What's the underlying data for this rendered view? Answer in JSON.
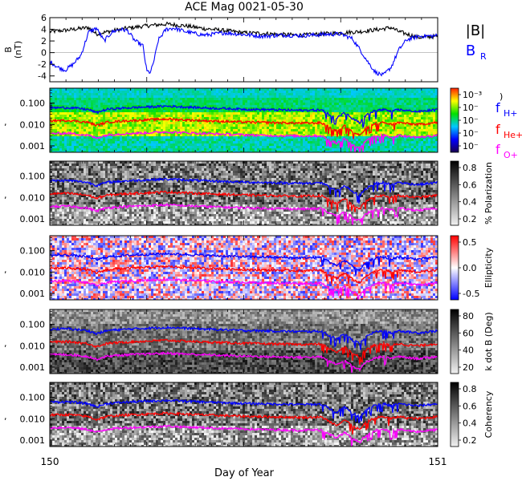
{
  "chart_data": {
    "type": "line",
    "title": "ACE Mag 0021-05-30",
    "xlabel": "Day of Year",
    "xlim": [
      150,
      151
    ],
    "x_ticks": [
      "150",
      "151"
    ],
    "panels": [
      {
        "id": "bfield",
        "type": "line",
        "ylabel": "B (nT)",
        "ylim": [
          -5,
          6
        ],
        "y_ticks": [
          "6",
          "4",
          "2",
          "0",
          "-2",
          "-4"
        ],
        "legend": [
          "|B|",
          "B_R"
        ],
        "series": [
          {
            "name": "|B|",
            "color": "#000000",
            "x": [
              150.0,
              150.05,
              150.1,
              150.12,
              150.15,
              150.2,
              150.25,
              150.3,
              150.35,
              150.4,
              150.45,
              150.5,
              150.55,
              150.6,
              150.65,
              150.7,
              150.75,
              150.8,
              150.85,
              150.88,
              150.9,
              150.95,
              151.0
            ],
            "y": [
              3.6,
              3.9,
              4.3,
              3.2,
              3.6,
              4.2,
              4.6,
              4.9,
              4.6,
              4.1,
              3.8,
              3.4,
              3.3,
              3.1,
              3.0,
              3.2,
              3.4,
              3.6,
              4.0,
              4.3,
              3.6,
              2.6,
              2.8
            ]
          },
          {
            "name": "B_R",
            "color": "#0000ff",
            "x": [
              150.0,
              150.02,
              150.04,
              150.06,
              150.08,
              150.1,
              150.12,
              150.14,
              150.16,
              150.18,
              150.2,
              150.22,
              150.24,
              150.25,
              150.26,
              150.27,
              150.28,
              150.3,
              150.32,
              150.35,
              150.38,
              150.4,
              150.45,
              150.5,
              150.55,
              150.6,
              150.65,
              150.7,
              150.75,
              150.78,
              150.8,
              150.82,
              150.84,
              150.86,
              150.88,
              150.9,
              150.92,
              150.95,
              151.0
            ],
            "y": [
              -1.5,
              -2.5,
              -3.0,
              -2.0,
              -0.5,
              3.5,
              4.2,
              2.0,
              3.5,
              4.0,
              3.8,
              2.0,
              1.2,
              -3.2,
              -3.4,
              -1.0,
              2.2,
              4.0,
              4.2,
              3.6,
              3.2,
              3.0,
              3.4,
              3.1,
              2.8,
              3.0,
              2.9,
              3.1,
              3.2,
              2.4,
              0.5,
              -1.6,
              -3.4,
              -3.9,
              -2.5,
              0.5,
              2.2,
              2.8,
              2.9
            ]
          }
        ]
      },
      {
        "id": "spectrum",
        "type": "heatmap",
        "ylabel": "",
        "ylim": [
          0.0005,
          0.5
        ],
        "yscale": "log",
        "y_ticks": [
          "0.100",
          "0.010",
          "0.001"
        ],
        "colorbar_ticks": [
          "10⁻³",
          "10⁻",
          "10⁻",
          "10⁻",
          "10⁻"
        ],
        "colorscale": "rainbow",
        "legend": [
          "f_H+",
          "f_He+",
          "f_O+"
        ]
      },
      {
        "id": "polarization",
        "type": "heatmap",
        "ylim": [
          0.0005,
          0.5
        ],
        "yscale": "log",
        "y_ticks": [
          "0.100",
          "0.010",
          "0.001"
        ],
        "colorbar_label": "% Polarization",
        "colorbar_ticks": [
          "0.8",
          "0.6",
          "0.4",
          "0.2"
        ],
        "colorscale": "gray"
      },
      {
        "id": "ellipticity",
        "type": "heatmap",
        "ylim": [
          0.0005,
          0.5
        ],
        "yscale": "log",
        "y_ticks": [
          "0.100",
          "0.010",
          "0.001"
        ],
        "colorbar_label": "Ellipticity",
        "colorbar_ticks": [
          "0.5",
          "0.0",
          "-0.5"
        ],
        "colorscale": "blue-white-red"
      },
      {
        "id": "kdotb",
        "type": "heatmap",
        "ylim": [
          0.0005,
          0.5
        ],
        "yscale": "log",
        "y_ticks": [
          "0.100",
          "0.010",
          "0.001"
        ],
        "colorbar_label": "k dot B (Deg)",
        "colorbar_ticks": [
          "80",
          "60",
          "40",
          "20"
        ],
        "colorscale": "gray"
      },
      {
        "id": "coherency",
        "type": "heatmap",
        "ylim": [
          0.0005,
          0.5
        ],
        "yscale": "log",
        "y_ticks": [
          "0.100",
          "0.010",
          "0.001"
        ],
        "colorbar_label": "Coherency",
        "colorbar_ticks": [
          "0.8",
          "0.6",
          "0.4",
          "0.2"
        ],
        "colorscale": "gray"
      }
    ],
    "gyro_lines": [
      {
        "name": "f_H+",
        "color": "#0000ff",
        "x": [
          150.0,
          150.05,
          150.1,
          150.12,
          150.15,
          150.2,
          150.25,
          150.3,
          150.35,
          150.4,
          150.45,
          150.5,
          150.55,
          150.6,
          150.65,
          150.7,
          150.72,
          150.74,
          150.76,
          150.78,
          150.8,
          150.82,
          150.84,
          150.86,
          150.88,
          150.9,
          150.92,
          150.95,
          151.0
        ],
        "y": [
          0.06,
          0.062,
          0.05,
          0.036,
          0.052,
          0.06,
          0.066,
          0.072,
          0.066,
          0.06,
          0.056,
          0.052,
          0.05,
          0.048,
          0.046,
          0.048,
          0.03,
          0.02,
          0.035,
          0.018,
          0.012,
          0.03,
          0.045,
          0.05,
          0.04,
          0.05,
          0.045,
          0.04,
          0.05
        ]
      },
      {
        "name": "f_He+",
        "color": "#ff0000",
        "x": [
          150.0,
          150.05,
          150.1,
          150.12,
          150.15,
          150.2,
          150.25,
          150.3,
          150.35,
          150.4,
          150.45,
          150.5,
          150.55,
          150.6,
          150.65,
          150.7,
          150.72,
          150.74,
          150.76,
          150.78,
          150.8,
          150.82,
          150.84,
          150.86,
          150.88,
          150.9,
          150.92,
          150.95,
          151.0
        ],
        "y": [
          0.015,
          0.0155,
          0.0125,
          0.009,
          0.013,
          0.015,
          0.0165,
          0.018,
          0.0165,
          0.015,
          0.014,
          0.013,
          0.0125,
          0.012,
          0.0115,
          0.012,
          0.0075,
          0.005,
          0.0088,
          0.0045,
          0.003,
          0.0075,
          0.011,
          0.0125,
          0.01,
          0.0125,
          0.011,
          0.01,
          0.0125
        ]
      },
      {
        "name": "f_O+",
        "color": "#ff00ff",
        "x": [
          150.0,
          150.05,
          150.1,
          150.12,
          150.15,
          150.2,
          150.25,
          150.3,
          150.35,
          150.4,
          150.45,
          150.5,
          150.55,
          150.6,
          150.65,
          150.7,
          150.72,
          150.74,
          150.76,
          150.78,
          150.8,
          150.82,
          150.84,
          150.86,
          150.88,
          150.9,
          150.92,
          150.95,
          151.0
        ],
        "y": [
          0.0038,
          0.0039,
          0.0031,
          0.0023,
          0.0033,
          0.0038,
          0.0041,
          0.0045,
          0.0041,
          0.0038,
          0.0035,
          0.0033,
          0.0031,
          0.003,
          0.0029,
          0.003,
          0.0019,
          0.0013,
          0.0022,
          0.0011,
          0.0008,
          0.0019,
          0.0028,
          0.0031,
          0.0025,
          0.0031,
          0.0028,
          0.0025,
          0.0031
        ]
      }
    ]
  }
}
